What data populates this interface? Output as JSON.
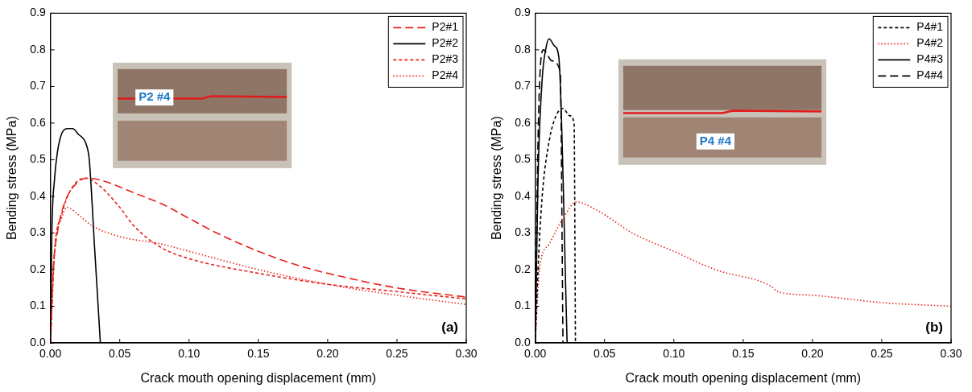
{
  "chart_data": [
    {
      "type": "line",
      "panel": "(a)",
      "x_label": "Crack mouth opening displacement (mm)",
      "y_label": "Bending stress (MPa)",
      "xlim": [
        0,
        0.3
      ],
      "xticks": [
        {
          "value": 0,
          "label": "0.00"
        },
        {
          "value": 0.05,
          "label": "0.05"
        },
        {
          "value": 0.1,
          "label": "0.10"
        },
        {
          "value": 0.15,
          "label": "0.15"
        },
        {
          "value": 0.2,
          "label": "0.20"
        },
        {
          "value": 0.25,
          "label": "0.25"
        },
        {
          "value": 0.3,
          "label": "0.30"
        }
      ],
      "ylim": [
        0,
        0.9
      ],
      "yticks": [
        {
          "value": 0,
          "label": "0.0"
        },
        {
          "value": 0.1,
          "label": "0.1"
        },
        {
          "value": 0.2,
          "label": "0.2"
        },
        {
          "value": 0.3,
          "label": "0.3"
        },
        {
          "value": 0.4,
          "label": "0.4"
        },
        {
          "value": 0.5,
          "label": "0.5"
        },
        {
          "value": 0.6,
          "label": "0.6"
        },
        {
          "value": 0.7,
          "label": "0.7"
        },
        {
          "value": 0.8,
          "label": "0.8"
        },
        {
          "value": 0.9,
          "label": "0.9"
        }
      ],
      "grid": false,
      "legend": "upper right",
      "annotations": [
        {
          "text": "P2 #4",
          "x": 0.075,
          "y": 0.67
        }
      ],
      "series": [
        {
          "name": "P2#1",
          "color": "#e8221b",
          "line_style": "long_dash",
          "marker": "none",
          "x": [
            0,
            0.002,
            0.005,
            0.01,
            0.02,
            0.027,
            0.04,
            0.06,
            0.08,
            0.1,
            0.12,
            0.15,
            0.18,
            0.2,
            0.25,
            0.3
          ],
          "values": [
            0,
            0.2,
            0.3,
            0.38,
            0.44,
            0.45,
            0.44,
            0.41,
            0.38,
            0.34,
            0.3,
            0.25,
            0.21,
            0.19,
            0.15,
            0.125
          ]
        },
        {
          "name": "P2#2",
          "color": "#000000",
          "line_style": "solid",
          "marker": "none",
          "x": [
            0,
            0.001,
            0.003,
            0.005,
            0.008,
            0.012,
            0.016,
            0.02,
            0.026,
            0.028,
            0.032,
            0.036
          ],
          "values": [
            0,
            0.3,
            0.45,
            0.52,
            0.57,
            0.585,
            0.585,
            0.57,
            0.54,
            0.5,
            0.25,
            0
          ]
        },
        {
          "name": "P2#3",
          "color": "#e8221b",
          "line_style": "short_dash",
          "marker": "none",
          "x": [
            0,
            0.003,
            0.008,
            0.015,
            0.025,
            0.035,
            0.05,
            0.06,
            0.08,
            0.1,
            0.15,
            0.2,
            0.25,
            0.3
          ],
          "values": [
            0,
            0.25,
            0.35,
            0.42,
            0.45,
            0.43,
            0.37,
            0.32,
            0.26,
            0.23,
            0.19,
            0.16,
            0.14,
            0.12
          ]
        },
        {
          "name": "P2#4",
          "color": "#e8221b",
          "line_style": "dotted",
          "marker": "none",
          "x": [
            0,
            0.003,
            0.008,
            0.012,
            0.02,
            0.03,
            0.05,
            0.08,
            0.1,
            0.15,
            0.2,
            0.25,
            0.3
          ],
          "values": [
            0,
            0.25,
            0.34,
            0.37,
            0.35,
            0.32,
            0.29,
            0.27,
            0.25,
            0.2,
            0.16,
            0.13,
            0.105
          ]
        }
      ]
    },
    {
      "type": "line",
      "panel": "(b)",
      "x_label": "Crack mouth opening displacement (mm)",
      "y_label": "Bending stress (MPa)",
      "xlim": [
        0,
        0.3
      ],
      "xticks": [
        {
          "value": 0,
          "label": "0.00"
        },
        {
          "value": 0.05,
          "label": "0.05"
        },
        {
          "value": 0.1,
          "label": "0.10"
        },
        {
          "value": 0.15,
          "label": "0.15"
        },
        {
          "value": 0.2,
          "label": "0.20"
        },
        {
          "value": 0.25,
          "label": "0.25"
        },
        {
          "value": 0.3,
          "label": "0.30"
        }
      ],
      "ylim": [
        0,
        0.9
      ],
      "yticks": [
        {
          "value": 0,
          "label": "0.0"
        },
        {
          "value": 0.1,
          "label": "0.1"
        },
        {
          "value": 0.2,
          "label": "0.2"
        },
        {
          "value": 0.3,
          "label": "0.3"
        },
        {
          "value": 0.4,
          "label": "0.4"
        },
        {
          "value": 0.5,
          "label": "0.5"
        },
        {
          "value": 0.6,
          "label": "0.6"
        },
        {
          "value": 0.7,
          "label": "0.7"
        },
        {
          "value": 0.8,
          "label": "0.8"
        },
        {
          "value": 0.9,
          "label": "0.9"
        }
      ],
      "grid": false,
      "legend": "upper right",
      "annotations": [
        {
          "text": "P4 #4",
          "x": 0.13,
          "y": 0.55
        }
      ],
      "series": [
        {
          "name": "P4#1",
          "color": "#000000",
          "line_style": "short_dash",
          "marker": "none",
          "x": [
            0,
            0.002,
            0.005,
            0.01,
            0.015,
            0.02,
            0.025,
            0.028,
            0.029
          ],
          "values": [
            0,
            0.2,
            0.4,
            0.55,
            0.62,
            0.64,
            0.62,
            0.6,
            0
          ]
        },
        {
          "name": "P4#2",
          "color": "#e8221b",
          "line_style": "dotted",
          "marker": "none",
          "x": [
            0,
            0.003,
            0.01,
            0.02,
            0.03,
            0.035,
            0.05,
            0.07,
            0.1,
            0.13,
            0.17,
            0.175,
            0.2,
            0.25,
            0.3
          ],
          "values": [
            0,
            0.2,
            0.27,
            0.34,
            0.385,
            0.38,
            0.35,
            0.3,
            0.25,
            0.2,
            0.155,
            0.14,
            0.13,
            0.11,
            0.1
          ]
        },
        {
          "name": "P4#3",
          "color": "#000000",
          "line_style": "solid",
          "marker": "none",
          "x": [
            0,
            0.002,
            0.005,
            0.008,
            0.01,
            0.014,
            0.017,
            0.023
          ],
          "values": [
            0,
            0.45,
            0.72,
            0.81,
            0.83,
            0.81,
            0.78,
            0
          ]
        },
        {
          "name": "P4#4",
          "color": "#000000",
          "line_style": "long_dash",
          "marker": "none",
          "x": [
            0,
            0.002,
            0.004,
            0.006,
            0.012,
            0.018,
            0.02
          ],
          "values": [
            0,
            0.55,
            0.77,
            0.8,
            0.77,
            0.74,
            0
          ]
        }
      ]
    }
  ]
}
